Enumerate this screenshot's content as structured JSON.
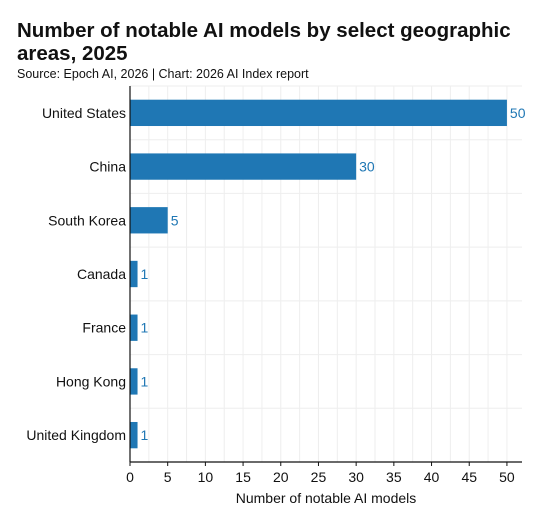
{
  "chart_data": {
    "type": "bar",
    "orientation": "horizontal",
    "title": "Number of notable AI models by select geographic areas, 2025",
    "subtitle": "Source: Epoch AI, 2026 | Chart: 2026 AI Index report",
    "categories": [
      "United States",
      "China",
      "South Korea",
      "Canada",
      "France",
      "Hong Kong",
      "United Kingdom"
    ],
    "values": [
      50,
      30,
      5,
      1,
      1,
      1,
      1
    ],
    "value_labels": [
      "50",
      "30",
      "5",
      "1",
      "1",
      "1",
      "1"
    ],
    "xlabel": "Number of notable AI models",
    "ylabel": "",
    "xlim": [
      0,
      52
    ],
    "xticks": [
      0,
      5,
      10,
      15,
      20,
      25,
      30,
      35,
      40,
      45,
      50
    ],
    "xtick_labels": [
      "0",
      "5",
      "10",
      "15",
      "20",
      "25",
      "30",
      "35",
      "40",
      "45",
      "50"
    ],
    "grid": true,
    "legend": "none",
    "colors": {
      "bar": "#1f77b4",
      "value_label": "#1f77b4",
      "grid": "#eeeeee",
      "axis": "#111111"
    }
  }
}
